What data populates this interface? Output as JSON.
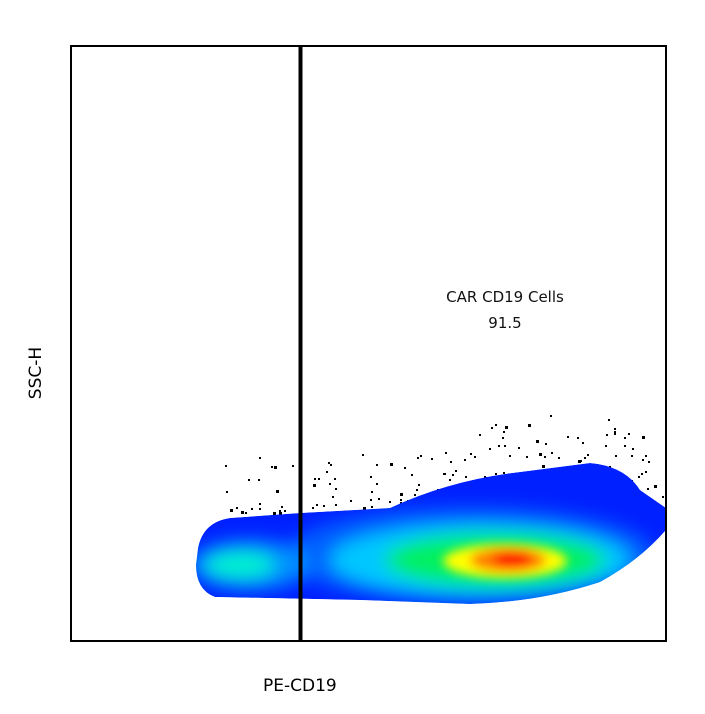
{
  "chart_data": {
    "type": "density",
    "title": "",
    "xlabel": "PE-CD19",
    "ylabel": "SSC-H",
    "grid": false,
    "gate": {
      "type": "vertical-threshold",
      "name": "CAR CD19 Cells",
      "percent": "91.5"
    },
    "colormap": [
      "#0020ff",
      "#00aaff",
      "#00ffdd",
      "#00ff00",
      "#ffff00",
      "#ff8000",
      "#ff0000"
    ]
  }
}
